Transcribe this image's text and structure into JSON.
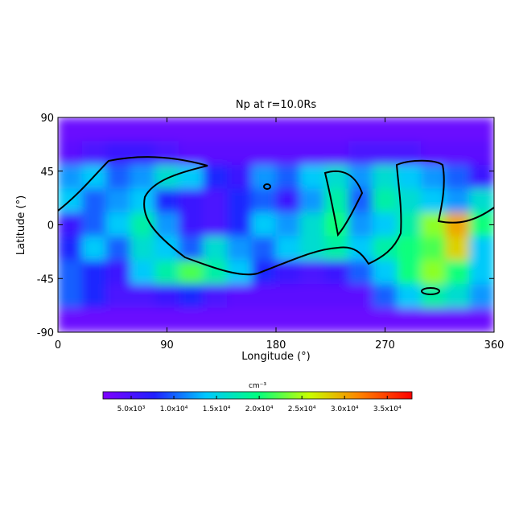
{
  "chart_data": {
    "type": "heatmap",
    "title": "Np at r=10.0Rs",
    "xlabel": "Longitude (°)",
    "ylabel": "Latitude (°)",
    "xlim": [
      0,
      360
    ],
    "xticks": [
      0,
      90,
      180,
      270,
      360
    ],
    "ylim": [
      -90,
      90
    ],
    "yticks": [
      -90,
      -45,
      0,
      45,
      90
    ],
    "xbins": [
      0,
      20,
      40,
      60,
      80,
      100,
      120,
      140,
      160,
      180,
      200,
      220,
      240,
      260,
      280,
      300,
      320,
      340,
      360
    ],
    "ybins": [
      90,
      70,
      50,
      30,
      10,
      -10,
      -30,
      -50,
      -70,
      -90
    ],
    "z": [
      [
        3000,
        3000,
        3000,
        3000,
        3000,
        3000,
        3000,
        3000,
        3000,
        3000,
        3000,
        3000,
        3000,
        3000,
        3000,
        3000,
        3000,
        3000
      ],
      [
        4000,
        5000,
        6000,
        6000,
        5000,
        4000,
        4000,
        4000,
        4000,
        4000,
        4000,
        4000,
        5000,
        5000,
        5000,
        4000,
        4000,
        4000
      ],
      [
        12000,
        14000,
        10000,
        12000,
        16000,
        14000,
        8000,
        6000,
        12000,
        10000,
        14000,
        16000,
        12000,
        16000,
        14000,
        12000,
        10000,
        6000
      ],
      [
        14000,
        10000,
        12000,
        14000,
        8000,
        6000,
        5000,
        8000,
        10000,
        6000,
        12000,
        18000,
        10000,
        18000,
        16000,
        14000,
        12000,
        16000
      ],
      [
        6000,
        10000,
        14000,
        18000,
        12000,
        6000,
        5000,
        8000,
        14000,
        12000,
        16000,
        20000,
        12000,
        14000,
        18000,
        24000,
        30000,
        20000
      ],
      [
        8000,
        14000,
        10000,
        16000,
        14000,
        10000,
        16000,
        12000,
        10000,
        14000,
        16000,
        18000,
        14000,
        18000,
        20000,
        22000,
        28000,
        14000
      ],
      [
        10000,
        8000,
        6000,
        14000,
        18000,
        22000,
        18000,
        14000,
        8000,
        6000,
        5000,
        6000,
        10000,
        14000,
        20000,
        24000,
        20000,
        14000
      ],
      [
        10000,
        8000,
        5000,
        5000,
        6000,
        8000,
        5000,
        4000,
        4000,
        4000,
        4000,
        4000,
        4000,
        10000,
        14000,
        18000,
        16000,
        12000
      ],
      [
        3000,
        3000,
        3000,
        3000,
        3000,
        3000,
        3000,
        3000,
        3000,
        3000,
        3000,
        3000,
        3000,
        3000,
        3000,
        3000,
        3000,
        3000
      ]
    ],
    "colormap": [
      "#7f00ff",
      "#2020ff",
      "#00c8ff",
      "#00ff80",
      "#c8ff00",
      "#ff8000",
      "#ff0000"
    ],
    "clim": [
      1700,
      37900
    ],
    "colorbar_label": "cm⁻³",
    "cbticks": [
      {
        "value": 5000,
        "label": "5.0x10³"
      },
      {
        "value": 10000,
        "label": "1.0x10⁴"
      },
      {
        "value": 15000,
        "label": "1.5x10⁴"
      },
      {
        "value": 20000,
        "label": "2.0x10⁴"
      },
      {
        "value": 25000,
        "label": "2.5x10⁴"
      },
      {
        "value": 30000,
        "label": "3.0x10⁴"
      },
      {
        "value": 35000,
        "label": "3.5x10⁴"
      }
    ]
  }
}
